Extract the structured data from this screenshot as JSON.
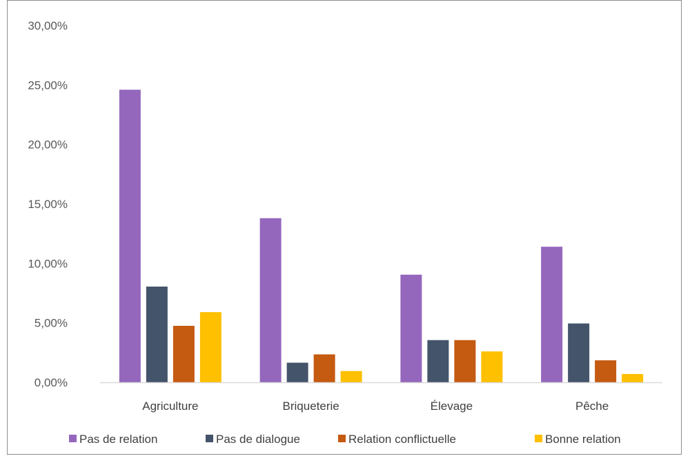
{
  "chart_data": {
    "type": "bar",
    "categories": [
      "Agriculture",
      "Briqueterie",
      "Élevage",
      "Pêche"
    ],
    "series": [
      {
        "name": "Pas de relation",
        "color": "#9467bd",
        "values": [
          24.6,
          13.8,
          9.05,
          11.4
        ]
      },
      {
        "name": "Pas de dialogue",
        "color": "#44546a",
        "values": [
          8.05,
          1.65,
          3.55,
          4.95
        ]
      },
      {
        "name": "Relation conflictuelle",
        "color": "#c55a11",
        "values": [
          4.75,
          2.35,
          3.55,
          1.85
        ]
      },
      {
        "name": "Bonne relation",
        "color": "#ffc000",
        "values": [
          5.9,
          0.95,
          2.6,
          0.7
        ]
      }
    ],
    "ylim": [
      0,
      30
    ],
    "yticks": [
      0,
      5,
      10,
      15,
      20,
      25,
      30
    ],
    "ytick_labels": [
      "0,00%",
      "5,00%",
      "10,00%",
      "15,00%",
      "20,00%",
      "25,00%",
      "30,00%"
    ],
    "grid": false,
    "legend": "bottom",
    "title": "",
    "xlabel": "",
    "ylabel": ""
  }
}
